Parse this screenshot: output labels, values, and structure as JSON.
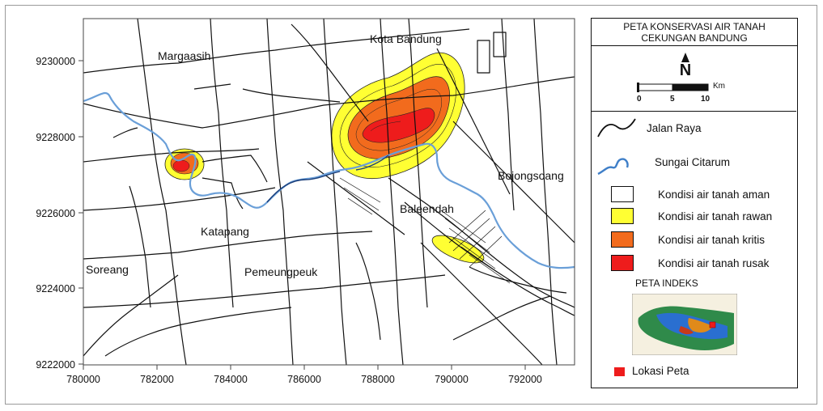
{
  "map": {
    "x_axis_ticks": [
      "780000",
      "782000",
      "784000",
      "786000",
      "788000",
      "790000",
      "792000"
    ],
    "y_axis_ticks": [
      "9222000",
      "9224000",
      "9226000",
      "9228000",
      "9230000"
    ],
    "places": {
      "margaasih": "Margaasih",
      "kota_bandung": "Kota Bandung",
      "bojongsoang": "Bojongsoang",
      "baleendah": "Baleendah",
      "katapang": "Katapang",
      "soreang": "Soreang",
      "pemeungpeuk": "Pemeungpeuk"
    },
    "colors": {
      "road": "#111111",
      "river": "#6a9fd8",
      "aman": "#ffffff",
      "rawan": "#ffff33",
      "kritis": "#f26b1d",
      "rusak": "#ee1c1c"
    }
  },
  "legend": {
    "title_line1": "PETA KONSERVASI AIR TANAH",
    "title_line2": "CEKUNGAN BANDUNG",
    "north_label": "N",
    "scale_unit": "Km",
    "scale_ticks": [
      "0",
      "5",
      "10"
    ],
    "items": {
      "jalan_raya": "Jalan Raya",
      "sungai": "Sungai Citarum",
      "aman": "Kondisi air tanah aman",
      "rawan": "Kondisi air tanah rawan",
      "kritis": "Kondisi air tanah kritis",
      "rusak": "Kondisi air tanah rusak"
    },
    "index_title": "PETA INDEKS",
    "lokasi": "Lokasi Peta"
  }
}
